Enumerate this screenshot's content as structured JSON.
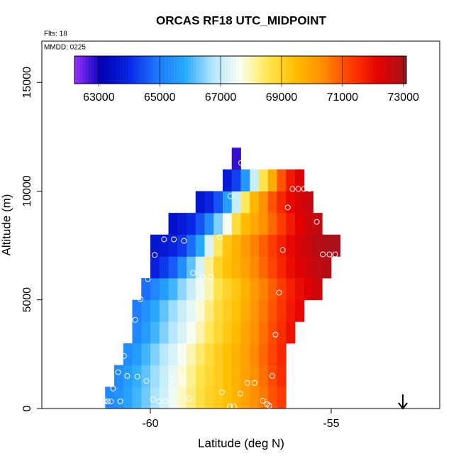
{
  "chart_data": {
    "type": "heatmap",
    "title": "ORCAS RF18 UTC_MIDPOINT",
    "annotations": [
      "Flts: 18",
      "MMDD: 0225"
    ],
    "xlabel": "Latitude (deg N)",
    "ylabel": "Altitude (m)",
    "xlim": [
      -63,
      -52
    ],
    "ylim": [
      0,
      16900
    ],
    "xticks": [
      -60,
      -55
    ],
    "yticks": [
      0,
      5000,
      10000,
      15000
    ],
    "xbins": [
      -61.25,
      -61,
      -60.75,
      -60.5,
      -60.25,
      -60,
      -59.75,
      -59.5,
      -59.25,
      -59,
      -58.75,
      -58.5,
      -58.25,
      -58,
      -57.75,
      -57.5,
      -57.25,
      -57,
      -56.75,
      -56.5,
      -56.25,
      -56,
      -55.75,
      -55.5,
      -55.25,
      -55,
      -54.75
    ],
    "ybins": [
      0,
      1000,
      2000,
      3000,
      4000,
      5000,
      6000,
      7000,
      8000,
      9000,
      10000,
      11000,
      12000
    ],
    "values": [
      [
        65200,
        65400,
        65700,
        66000,
        66300,
        66700,
        67100,
        67500,
        67900,
        68300,
        68700,
        69000,
        69200,
        69400,
        69700,
        70000,
        70300,
        70600,
        71000,
        71300,
        null,
        null,
        null,
        null,
        null,
        null
      ],
      [
        null,
        65300,
        65600,
        65900,
        66200,
        66600,
        67000,
        67400,
        67800,
        68200,
        68600,
        68900,
        69100,
        69400,
        69700,
        70000,
        70300,
        70700,
        71100,
        71500,
        null,
        null,
        null,
        null,
        null,
        null
      ],
      [
        null,
        null,
        65300,
        65600,
        66000,
        66400,
        66800,
        67200,
        67600,
        68000,
        68400,
        68800,
        69100,
        69400,
        69700,
        70000,
        70400,
        70800,
        71200,
        71600,
        null,
        null,
        null,
        null,
        null,
        null
      ],
      [
        null,
        null,
        null,
        65200,
        65600,
        66000,
        66400,
        66800,
        67200,
        67600,
        68000,
        68500,
        68900,
        69200,
        69500,
        69900,
        70300,
        70700,
        71100,
        71500,
        71900,
        null,
        null,
        null,
        null,
        null
      ],
      [
        null,
        null,
        null,
        65000,
        65400,
        65800,
        66200,
        66600,
        67000,
        67400,
        67800,
        68300,
        68800,
        69100,
        69400,
        69800,
        70200,
        70600,
        71000,
        71400,
        71800,
        72100,
        null,
        null,
        null,
        null
      ],
      [
        null,
        null,
        null,
        null,
        64800,
        65200,
        65600,
        66000,
        66500,
        67000,
        67500,
        68000,
        68600,
        69000,
        69300,
        69700,
        70100,
        70500,
        70900,
        71300,
        71700,
        72000,
        72300,
        72500,
        null,
        null
      ],
      [
        null,
        null,
        null,
        null,
        null,
        63800,
        64200,
        64600,
        65300,
        66200,
        67200,
        68200,
        69000,
        69400,
        69700,
        70000,
        70400,
        70800,
        71200,
        71600,
        72000,
        72300,
        72500,
        72700,
        72800,
        null
      ],
      [
        null,
        null,
        null,
        null,
        null,
        63600,
        63700,
        63900,
        64200,
        64800,
        65800,
        67200,
        68500,
        69300,
        69700,
        70100,
        70500,
        70900,
        71300,
        71700,
        72100,
        72400,
        72600,
        72800,
        72900,
        73000
      ],
      [
        null,
        null,
        null,
        null,
        null,
        null,
        null,
        63500,
        63700,
        64000,
        64500,
        65300,
        66400,
        67600,
        68800,
        69500,
        69900,
        70300,
        70800,
        71300,
        71800,
        72200,
        72500,
        72700,
        null,
        null
      ],
      [
        null,
        null,
        null,
        null,
        null,
        null,
        null,
        null,
        null,
        null,
        63600,
        63900,
        64500,
        65600,
        67000,
        68500,
        69600,
        70300,
        71000,
        71600,
        72100,
        72400,
        72600,
        null,
        null,
        null
      ],
      [
        null,
        null,
        null,
        null,
        null,
        null,
        null,
        null,
        null,
        null,
        null,
        null,
        null,
        63700,
        64300,
        65500,
        67000,
        68600,
        69800,
        71000,
        71800,
        72300,
        null,
        null,
        null,
        null
      ],
      [
        null,
        null,
        null,
        null,
        null,
        null,
        null,
        null,
        null,
        null,
        null,
        null,
        null,
        null,
        62800,
        null,
        null,
        null,
        null,
        null,
        null,
        null,
        null,
        null,
        null,
        null
      ]
    ],
    "colorbar": {
      "lim": [
        62200,
        73100
      ],
      "ticks": [
        63000,
        65000,
        67000,
        69000,
        71000,
        73000
      ],
      "colors": [
        "#9932ff",
        "#0000b4",
        "#0a28e6",
        "#1e78ff",
        "#28aaff",
        "#b4e6ff",
        "#fafff0",
        "#ffe650",
        "#ffbe00",
        "#ff8c00",
        "#ff3c00",
        "#e60000",
        "#a0141e"
      ]
    },
    "points": {
      "color": "#ffffff",
      "x": [
        -57.49,
        -57.79,
        -56.07,
        -55.91,
        -55.75,
        -55.6,
        -56.2,
        -55.4,
        -59.62,
        -59.35,
        -59.07,
        -58.08,
        -56.34,
        -55.23,
        -55.05,
        -54.89,
        -59.88,
        -58.82,
        -58.55,
        -58.33,
        -60.07,
        -56.44,
        -60.27,
        -60.42,
        -60.6,
        -56.54,
        -60.73,
        -56.63,
        -60.89,
        -60.64,
        -60.36,
        -60.11,
        -59.41,
        -59.13,
        -57.32,
        -57.12,
        -57.51,
        -58.02,
        -61.03,
        -61.18,
        -61.26,
        -61.09,
        -60.83,
        -59.93,
        -59.76,
        -59.58,
        -58.92,
        -57.8,
        -57.69,
        -56.89,
        -56.77,
        -56.71
      ],
      "y": [
        11300,
        9770,
        10100,
        10100,
        10100,
        10100,
        9250,
        8590,
        7780,
        7780,
        7710,
        7880,
        7290,
        7090,
        7090,
        7090,
        7060,
        6240,
        6050,
        6050,
        5950,
        5330,
        5030,
        4080,
        3240,
        3400,
        2420,
        1500,
        1670,
        1500,
        1470,
        1270,
        1340,
        1310,
        1180,
        1180,
        690,
        750,
        920,
        330,
        330,
        330,
        330,
        420,
        330,
        330,
        460,
        100,
        100,
        360,
        200,
        130
      ]
    }
  }
}
